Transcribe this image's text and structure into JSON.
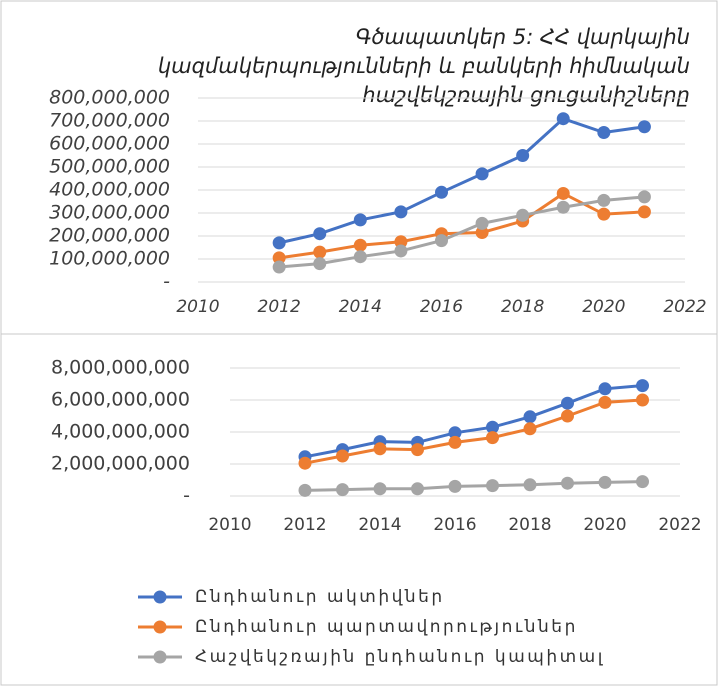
{
  "chart_data": [
    {
      "type": "line",
      "title": [
        "Գծապատկեր 5: ՀՀ վարկային",
        "կազմակերպությունների  և  բանկերի հիմնական",
        "հաշվեկշռային ցուցանիշները"
      ],
      "x": [
        2012,
        2013,
        2014,
        2015,
        2016,
        2017,
        2018,
        2019,
        2020,
        2021
      ],
      "xlim": [
        2010,
        2022
      ],
      "xticks": [
        2010,
        2012,
        2014,
        2016,
        2018,
        2020,
        2022
      ],
      "ylim": [
        0,
        800000000
      ],
      "yticks": [
        {
          "value": 0,
          "label": "-"
        },
        {
          "value": 100000000,
          "label": "100,000,000"
        },
        {
          "value": 200000000,
          "label": "200,000,000"
        },
        {
          "value": 300000000,
          "label": "300,000,000"
        },
        {
          "value": 400000000,
          "label": "400,000,000"
        },
        {
          "value": 500000000,
          "label": "500,000,000"
        },
        {
          "value": 600000000,
          "label": "600,000,000"
        },
        {
          "value": 700000000,
          "label": "700,000,000"
        },
        {
          "value": 800000000,
          "label": "800,000,000"
        }
      ],
      "grid": true,
      "series": [
        {
          "color": "#4472c4",
          "values": [
            170000000,
            210000000,
            270000000,
            305000000,
            390000000,
            470000000,
            550000000,
            710000000,
            650000000,
            675000000
          ]
        },
        {
          "color": "#ed7d31",
          "values": [
            105000000,
            130000000,
            160000000,
            175000000,
            210000000,
            215000000,
            265000000,
            385000000,
            295000000,
            305000000
          ]
        },
        {
          "color": "#a5a5a5",
          "values": [
            65000000,
            80000000,
            110000000,
            135000000,
            180000000,
            255000000,
            290000000,
            325000000,
            355000000,
            370000000
          ]
        }
      ]
    },
    {
      "type": "line",
      "x": [
        2012,
        2013,
        2014,
        2015,
        2016,
        2017,
        2018,
        2019,
        2020,
        2021
      ],
      "xlim": [
        2010,
        2022
      ],
      "xticks": [
        2010,
        2012,
        2014,
        2016,
        2018,
        2020,
        2022
      ],
      "ylim": [
        0,
        8000000000
      ],
      "yticks": [
        {
          "value": 0,
          "label": "-"
        },
        {
          "value": 2000000000,
          "label": "2,000,000,000"
        },
        {
          "value": 4000000000,
          "label": "4,000,000,000"
        },
        {
          "value": 6000000000,
          "label": "6,000,000,000"
        },
        {
          "value": 8000000000,
          "label": "8,000,000,000"
        }
      ],
      "grid": true,
      "series": [
        {
          "name": "Ընդհանուր ակտիվներ",
          "color": "#4472c4",
          "values": [
            2450000000,
            2900000000,
            3400000000,
            3350000000,
            3950000000,
            4300000000,
            4950000000,
            5800000000,
            6700000000,
            6900000000
          ]
        },
        {
          "name": "Ընդհանուր պարտավորություններ",
          "color": "#ed7d31",
          "values": [
            2050000000,
            2500000000,
            2950000000,
            2900000000,
            3350000000,
            3650000000,
            4200000000,
            5000000000,
            5850000000,
            6000000000
          ]
        },
        {
          "name": "Հաշվեկշռային ընդհանուր կապիտալ",
          "color": "#a5a5a5",
          "values": [
            350000000,
            400000000,
            450000000,
            450000000,
            600000000,
            650000000,
            700000000,
            800000000,
            850000000,
            900000000
          ]
        }
      ]
    }
  ]
}
